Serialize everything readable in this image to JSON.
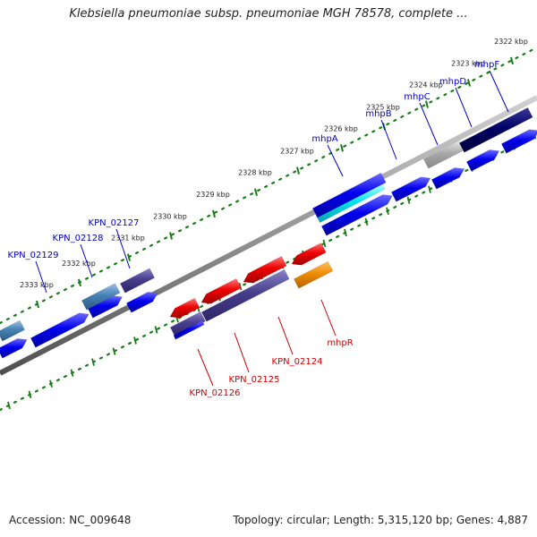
{
  "title": "Klebsiella pneumoniae subsp. pneumoniae MGH 78578, complete ...",
  "footer": {
    "accession": "Accession: NC_009648",
    "topology": "Topology: circular; Length: 5,315,120 bp; Genes: 4,887"
  },
  "ticks": [
    "2333 kbp",
    "2332 kbp",
    "2331 kbp",
    "2330 kbp",
    "2329 kbp",
    "2328 kbp",
    "2327 kbp",
    "2326 kbp",
    "2325 kbp",
    "2324 kbp",
    "2323 kbp",
    "2322 kbp"
  ],
  "genes_top": [
    "KPN_02129",
    "KPN_02128",
    "KPN_02127",
    "mhpA",
    "mhpB",
    "mhpC",
    "mhpD",
    "mhpF"
  ],
  "genes_bottom": [
    "KPN_02126",
    "KPN_02125",
    "KPN_02124",
    "mhpR"
  ],
  "colors": {
    "blue_gene": "#0000ee",
    "red_gene": "#ee0000",
    "orange_gene": "#f08c00",
    "slate_gene": "#483d8b",
    "navy_gene": "#000066",
    "steel_gene": "#4682b4",
    "cyan_gene": "#00e5ee",
    "gray_gene": "#a9a9a9",
    "top_label": "#0000cc",
    "bottom_label": "#cc0000",
    "tick_dots": "#1a7a1a",
    "backbone": "#808080"
  }
}
